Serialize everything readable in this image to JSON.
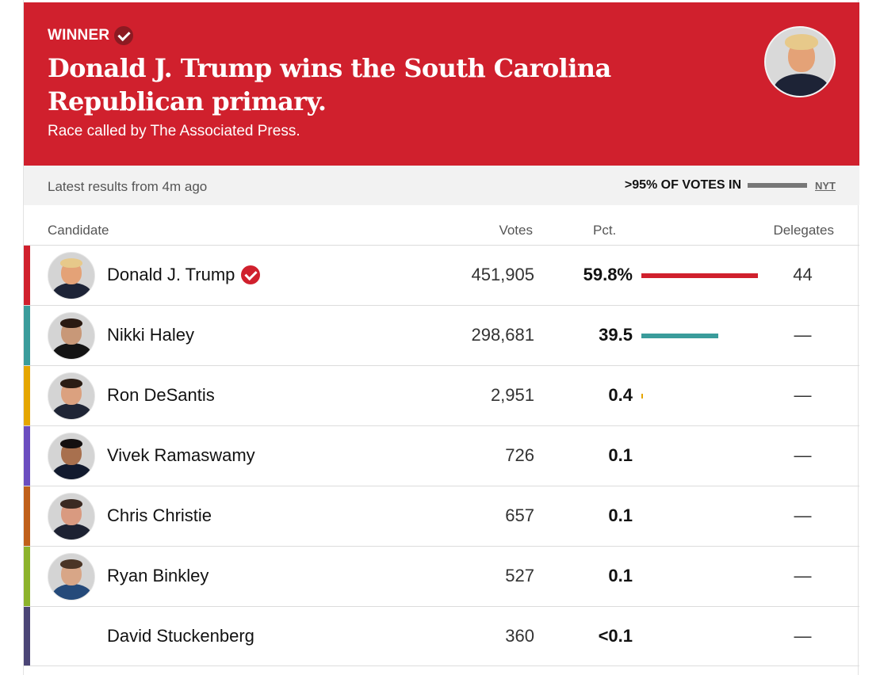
{
  "banner": {
    "winner_label": "WINNER",
    "headline": "Donald J. Trump wins the South Carolina Republican primary.",
    "called_by": "Race called by The Associated Press.",
    "photo_icon": "candidate-photo-trump"
  },
  "meta": {
    "latest": "Latest results from 4m ago",
    "votes_in": ">95% OF VOTES IN",
    "votes_in_fraction": 0.95,
    "source": "NYT"
  },
  "table": {
    "headers": {
      "candidate": "Candidate",
      "votes": "Votes",
      "pct": "Pct.",
      "delegates": "Delegates"
    },
    "rows": [
      {
        "name": "Donald J. Trump",
        "votes": "451,905",
        "pct": "59.8%",
        "pct_value": 59.8,
        "delegates": "44",
        "winner": true,
        "color": "#d0202d",
        "has_photo": true,
        "skin": "#e4a277",
        "hair": "#e7c98a",
        "suit": "#1d2336"
      },
      {
        "name": "Nikki Haley",
        "votes": "298,681",
        "pct": "39.5",
        "pct_value": 39.5,
        "delegates": "—",
        "winner": false,
        "color": "#3a9c9b",
        "has_photo": true,
        "skin": "#c89878",
        "hair": "#2a1a12",
        "suit": "#141414"
      },
      {
        "name": "Ron DeSantis",
        "votes": "2,951",
        "pct": "0.4",
        "pct_value": 0.4,
        "delegates": "—",
        "winner": false,
        "color": "#e5a600",
        "has_photo": true,
        "skin": "#dba17f",
        "hair": "#2b1d14",
        "suit": "#1f2535"
      },
      {
        "name": "Vivek Ramaswamy",
        "votes": "726",
        "pct": "0.1",
        "pct_value": 0.1,
        "delegates": "—",
        "winner": false,
        "color": "#6b4dbf",
        "has_photo": true,
        "skin": "#a8704e",
        "hair": "#141010",
        "suit": "#121a2e"
      },
      {
        "name": "Chris Christie",
        "votes": "657",
        "pct": "0.1",
        "pct_value": 0.1,
        "delegates": "—",
        "winner": false,
        "color": "#c0601a",
        "has_photo": true,
        "skin": "#d99a80",
        "hair": "#3b2a22",
        "suit": "#1d2232"
      },
      {
        "name": "Ryan Binkley",
        "votes": "527",
        "pct": "0.1",
        "pct_value": 0.1,
        "delegates": "—",
        "winner": false,
        "color": "#8cb32b",
        "has_photo": true,
        "skin": "#d8a687",
        "hair": "#4b3526",
        "suit": "#254a7a"
      },
      {
        "name": "David Stuckenberg",
        "votes": "360",
        "pct": "<0.1",
        "pct_value": 0.05,
        "delegates": "—",
        "winner": false,
        "color": "#4b4576",
        "has_photo": false
      }
    ]
  }
}
